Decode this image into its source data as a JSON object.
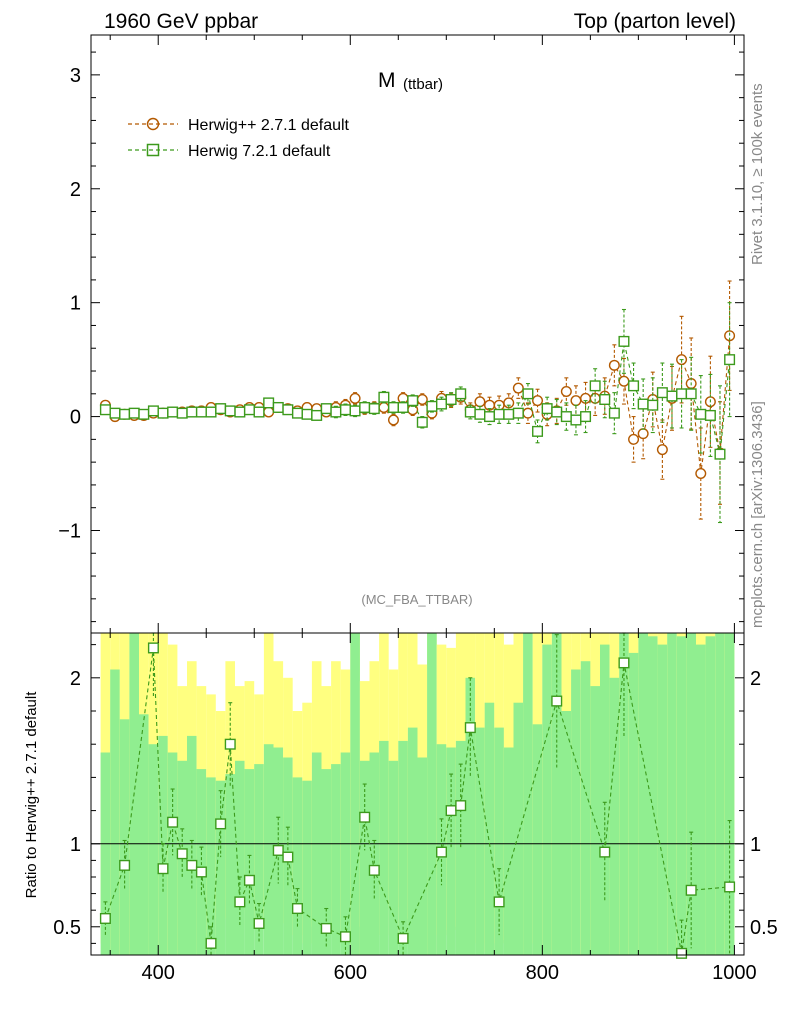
{
  "header": {
    "left": "1960 GeV ppbar",
    "right": "Top (parton level)"
  },
  "side": {
    "rivet": "Rivet 3.1.10, ≥ 100k events",
    "mcplots": "mcplots.cern.ch [arXiv:1306.3436]"
  },
  "analysis": "(MC_FBA_TTBAR)",
  "chart_data": [
    {
      "type": "scatter",
      "title_main": "M",
      "title_sub": "(ttbar)",
      "xlim": [
        330,
        1010
      ],
      "ylim": [
        -1.9,
        3.35
      ],
      "yticks": [
        3,
        2,
        1,
        0,
        -1
      ],
      "ytick_labels": [
        "3",
        "2",
        "1",
        "0",
        "−1"
      ],
      "legend_position": "top-left",
      "series": [
        {
          "name": "Herwig++ 2.7.1 default",
          "color": "#b35900",
          "marker": "circle",
          "x": [
            345,
            355,
            365,
            375,
            385,
            395,
            405,
            415,
            425,
            435,
            445,
            455,
            465,
            475,
            485,
            495,
            505,
            515,
            525,
            535,
            545,
            555,
            565,
            575,
            585,
            595,
            605,
            615,
            625,
            635,
            645,
            655,
            665,
            675,
            685,
            695,
            705,
            715,
            725,
            735,
            745,
            755,
            765,
            775,
            785,
            795,
            805,
            815,
            825,
            835,
            845,
            855,
            865,
            875,
            885,
            895,
            905,
            915,
            925,
            935,
            945,
            955,
            965,
            975,
            985,
            995
          ],
          "y": [
            0.1,
            0.0,
            0.02,
            0.01,
            0.01,
            0.03,
            0.03,
            0.04,
            0.04,
            0.05,
            0.05,
            0.08,
            0.06,
            0.04,
            0.06,
            0.08,
            0.08,
            0.04,
            0.08,
            0.07,
            0.05,
            0.08,
            0.07,
            0.04,
            0.08,
            0.1,
            0.16,
            0.07,
            0.08,
            0.08,
            -0.03,
            0.16,
            0.06,
            0.15,
            0.03,
            0.16,
            0.14,
            0.17,
            0.06,
            0.13,
            0.1,
            0.1,
            0.12,
            0.25,
            0.03,
            0.14,
            0.02,
            0.05,
            0.22,
            0.14,
            0.16,
            0.16,
            0.18,
            0.45,
            0.31,
            -0.2,
            -0.15,
            0.15,
            -0.29,
            0.16,
            0.5,
            0.29,
            -0.5,
            0.13,
            -0.32,
            0.71
          ],
          "err": [
            0.04,
            0.03,
            0.03,
            0.03,
            0.03,
            0.03,
            0.03,
            0.03,
            0.03,
            0.03,
            0.04,
            0.04,
            0.04,
            0.04,
            0.04,
            0.04,
            0.04,
            0.04,
            0.04,
            0.04,
            0.04,
            0.04,
            0.04,
            0.04,
            0.05,
            0.05,
            0.05,
            0.05,
            0.05,
            0.05,
            0.05,
            0.05,
            0.05,
            0.05,
            0.05,
            0.06,
            0.06,
            0.06,
            0.06,
            0.07,
            0.07,
            0.08,
            0.08,
            0.09,
            0.09,
            0.1,
            0.1,
            0.11,
            0.12,
            0.13,
            0.14,
            0.15,
            0.16,
            0.18,
            0.2,
            0.2,
            0.22,
            0.24,
            0.26,
            0.28,
            0.38,
            0.4,
            0.4,
            0.4,
            0.45,
            0.48
          ]
        },
        {
          "name": "Herwig 7.2.1 default",
          "color": "#3c9a1c",
          "marker": "square",
          "x": [
            345,
            355,
            365,
            375,
            385,
            395,
            405,
            415,
            425,
            435,
            445,
            455,
            465,
            475,
            485,
            495,
            505,
            515,
            525,
            535,
            545,
            555,
            565,
            575,
            585,
            595,
            605,
            615,
            625,
            635,
            645,
            655,
            665,
            675,
            685,
            695,
            705,
            715,
            725,
            735,
            745,
            755,
            765,
            775,
            785,
            795,
            805,
            815,
            825,
            835,
            845,
            855,
            865,
            875,
            885,
            895,
            905,
            915,
            925,
            935,
            945,
            955,
            965,
            975,
            985,
            995
          ],
          "y": [
            0.06,
            0.03,
            0.02,
            0.03,
            0.02,
            0.05,
            0.03,
            0.04,
            0.03,
            0.04,
            0.04,
            0.04,
            0.07,
            0.05,
            0.04,
            0.06,
            0.04,
            0.12,
            0.08,
            0.06,
            0.03,
            0.02,
            0.01,
            0.07,
            0.04,
            0.06,
            0.05,
            0.08,
            0.07,
            0.17,
            0.08,
            0.08,
            0.14,
            -0.05,
            0.09,
            0.11,
            0.15,
            0.2,
            0.04,
            0.02,
            0.0,
            0.02,
            0.02,
            0.03,
            0.2,
            -0.13,
            0.07,
            0.04,
            0.0,
            -0.03,
            0.0,
            0.27,
            0.15,
            0.03,
            0.66,
            0.27,
            0.11,
            0.1,
            0.21,
            0.18,
            0.2,
            0.2,
            0.02,
            0.01,
            -0.33,
            0.5
          ],
          "err": [
            0.04,
            0.03,
            0.03,
            0.03,
            0.03,
            0.03,
            0.03,
            0.03,
            0.03,
            0.03,
            0.04,
            0.04,
            0.04,
            0.04,
            0.04,
            0.04,
            0.04,
            0.04,
            0.04,
            0.04,
            0.04,
            0.04,
            0.04,
            0.04,
            0.05,
            0.05,
            0.05,
            0.05,
            0.05,
            0.05,
            0.05,
            0.05,
            0.05,
            0.05,
            0.05,
            0.06,
            0.06,
            0.06,
            0.06,
            0.07,
            0.07,
            0.08,
            0.08,
            0.09,
            0.09,
            0.1,
            0.1,
            0.11,
            0.12,
            0.13,
            0.14,
            0.15,
            0.16,
            0.18,
            0.28,
            0.2,
            0.22,
            0.24,
            0.26,
            0.28,
            0.3,
            0.32,
            0.34,
            0.36,
            0.6,
            0.5
          ]
        }
      ]
    },
    {
      "type": "scatter",
      "ylabel": "Ratio to Herwig++ 2.7.1 default",
      "xlim": [
        330,
        1010
      ],
      "ylim": [
        0.33,
        2.27
      ],
      "reference": 1.0,
      "xticks": [
        400,
        600,
        800,
        1000
      ],
      "xtick_labels": [
        "400",
        "600",
        "800",
        "1000"
      ],
      "yticks": [
        0.5,
        1,
        2
      ],
      "ytick_labels": [
        "0.5",
        "1",
        "2"
      ],
      "band_colors": {
        "inner": "#90ee90",
        "outer": "#ffff80"
      },
      "band_inner_lo": [
        0.3,
        0.3,
        0.3,
        0.3,
        0.3,
        0.3,
        0.3,
        0.3,
        0.3,
        0.3,
        0.3,
        0.3,
        0.3,
        0.3,
        0.3,
        0.3,
        0.3,
        0.3,
        0.3,
        0.3,
        0.3,
        0.3,
        0.3,
        0.3,
        0.3,
        0.3,
        0.3,
        0.3,
        0.3,
        0.3,
        0.3,
        0.3,
        0.3,
        0.3,
        0.3,
        0.3,
        0.3,
        0.3,
        0.3,
        0.3,
        0.3,
        0.3,
        0.3,
        0.3,
        0.3,
        0.3,
        0.3,
        0.3,
        0.3,
        0.3,
        0.3,
        0.3,
        0.3,
        0.3,
        0.3,
        0.3,
        0.3,
        0.3,
        0.3,
        0.3,
        0.3,
        0.3,
        0.3,
        0.3,
        0.3,
        0.3
      ],
      "band_inner_hi": [
        1.55,
        2.05,
        1.75,
        2.3,
        1.78,
        1.6,
        1.65,
        1.55,
        1.5,
        1.65,
        1.45,
        1.4,
        1.38,
        1.42,
        1.5,
        1.45,
        1.48,
        1.6,
        1.58,
        1.52,
        1.4,
        1.38,
        1.55,
        1.45,
        1.48,
        1.55,
        2.3,
        1.5,
        1.55,
        1.62,
        1.5,
        1.62,
        1.7,
        1.52,
        2.3,
        1.6,
        1.58,
        1.62,
        2.0,
        1.7,
        1.85,
        1.7,
        1.58,
        1.85,
        2.3,
        1.72,
        2.2,
        2.3,
        1.8,
        2.05,
        2.1,
        1.95,
        2.2,
        2.0,
        2.3,
        2.15,
        2.3,
        2.25,
        2.2,
        2.3,
        2.25,
        2.3,
        2.2,
        2.25,
        2.3,
        2.3
      ],
      "band_outer_lo": [
        0.4,
        0.3,
        0.3,
        0.3,
        0.3,
        0.3,
        0.3,
        0.3,
        0.3,
        0.3,
        0.3,
        0.3,
        0.55,
        0.55,
        0.5,
        0.6,
        0.55,
        0.5,
        0.58,
        0.52,
        0.45,
        0.4,
        0.5,
        0.6,
        0.52,
        0.48,
        0.3,
        0.5,
        0.58,
        0.45,
        0.62,
        0.4,
        0.55,
        0.5,
        0.3,
        0.45,
        0.48,
        0.5,
        0.3,
        0.4,
        0.35,
        0.4,
        0.42,
        0.3,
        0.3,
        0.4,
        0.3,
        0.3,
        0.35,
        0.3,
        0.3,
        0.3,
        0.3,
        0.3,
        0.3,
        0.3,
        0.3,
        0.3,
        0.3,
        0.3,
        0.3,
        0.3,
        0.3,
        0.3,
        0.3,
        0.3
      ],
      "band_outer_hi": [
        2.3,
        2.3,
        2.3,
        2.3,
        2.3,
        2.3,
        2.3,
        2.2,
        1.95,
        2.1,
        1.95,
        1.9,
        1.8,
        2.1,
        1.95,
        1.98,
        1.9,
        2.3,
        2.1,
        2.0,
        1.8,
        1.85,
        2.1,
        1.95,
        2.1,
        2.05,
        2.3,
        1.98,
        2.1,
        2.3,
        2.05,
        2.3,
        2.3,
        2.08,
        2.3,
        2.2,
        2.18,
        2.3,
        2.3,
        2.3,
        2.3,
        2.3,
        2.2,
        2.3,
        2.3,
        2.3,
        2.3,
        2.3,
        2.3,
        2.3,
        2.3,
        2.3,
        2.3,
        2.3,
        2.3,
        2.3,
        2.3,
        2.3,
        2.3,
        2.3,
        2.3,
        2.3,
        2.3,
        2.3,
        2.3,
        2.3
      ],
      "ratio_x": [
        345,
        365,
        395,
        405,
        415,
        425,
        435,
        445,
        455,
        465,
        475,
        485,
        495,
        505,
        525,
        535,
        545,
        575,
        595,
        615,
        625,
        655,
        695,
        705,
        715,
        725,
        755,
        815,
        865,
        885,
        945,
        955,
        995
      ],
      "ratio_y": [
        0.55,
        0.87,
        2.18,
        0.85,
        1.13,
        0.94,
        0.87,
        0.83,
        0.4,
        1.12,
        1.6,
        0.65,
        0.78,
        0.52,
        0.96,
        0.92,
        0.61,
        0.49,
        0.44,
        1.16,
        0.84,
        0.43,
        0.95,
        1.2,
        1.23,
        1.7,
        0.65,
        1.86,
        0.95,
        2.09,
        0.34,
        0.72,
        0.74
      ],
      "ratio_err": [
        0.1,
        0.15,
        0.3,
        0.15,
        0.2,
        0.15,
        0.15,
        0.15,
        0.1,
        0.2,
        0.25,
        0.15,
        0.15,
        0.12,
        0.2,
        0.18,
        0.12,
        0.12,
        0.12,
        0.2,
        0.18,
        0.1,
        0.2,
        0.22,
        0.25,
        0.3,
        0.2,
        0.4,
        0.3,
        0.45,
        0.2,
        0.35,
        0.4
      ]
    }
  ]
}
